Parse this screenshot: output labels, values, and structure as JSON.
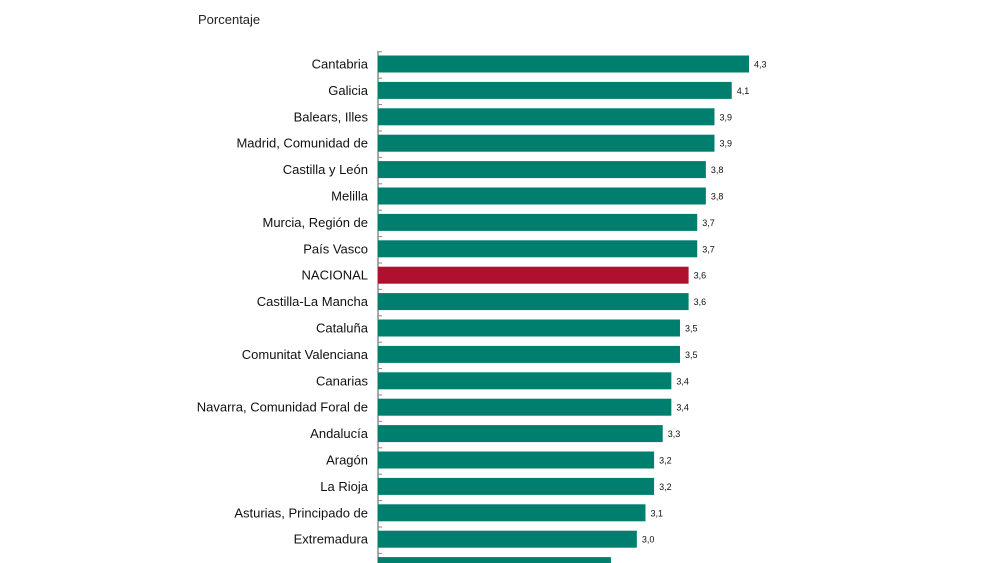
{
  "chart_data": {
    "type": "bar",
    "orientation": "horizontal",
    "unit_label": "Porcentaje",
    "categories": [
      "Cantabria",
      "Galicia",
      "Balears, Illes",
      "Madrid, Comunidad de",
      "Castilla y León",
      "Melilla",
      "Murcia, Región de",
      "País Vasco",
      "NACIONAL",
      "Castilla-La Mancha",
      "Cataluña",
      "Comunitat Valenciana",
      "Canarias",
      "Navarra, Comunidad Foral de",
      "Andalucía",
      "Aragón",
      "La Rioja",
      "Asturias, Principado de",
      "Extremadura",
      ""
    ],
    "values": [
      4.3,
      4.1,
      3.9,
      3.9,
      3.8,
      3.8,
      3.7,
      3.7,
      3.6,
      3.6,
      3.5,
      3.5,
      3.4,
      3.4,
      3.3,
      3.2,
      3.2,
      3.1,
      3.0,
      2.7
    ],
    "value_labels": [
      "4,3",
      "4,1",
      "3,9",
      "3,9",
      "3,8",
      "3,8",
      "3,7",
      "3,7",
      "3,6",
      "3,6",
      "3,5",
      "3,5",
      "3,4",
      "3,4",
      "3,3",
      "3,2",
      "3,2",
      "3,1",
      "3,0",
      ""
    ],
    "highlight_category": "NACIONAL",
    "xlim": [
      0,
      4.3
    ],
    "grid": false,
    "colors": {
      "bar": "#007E6E",
      "highlight": "#B0102E",
      "axis": "#555555"
    }
  }
}
